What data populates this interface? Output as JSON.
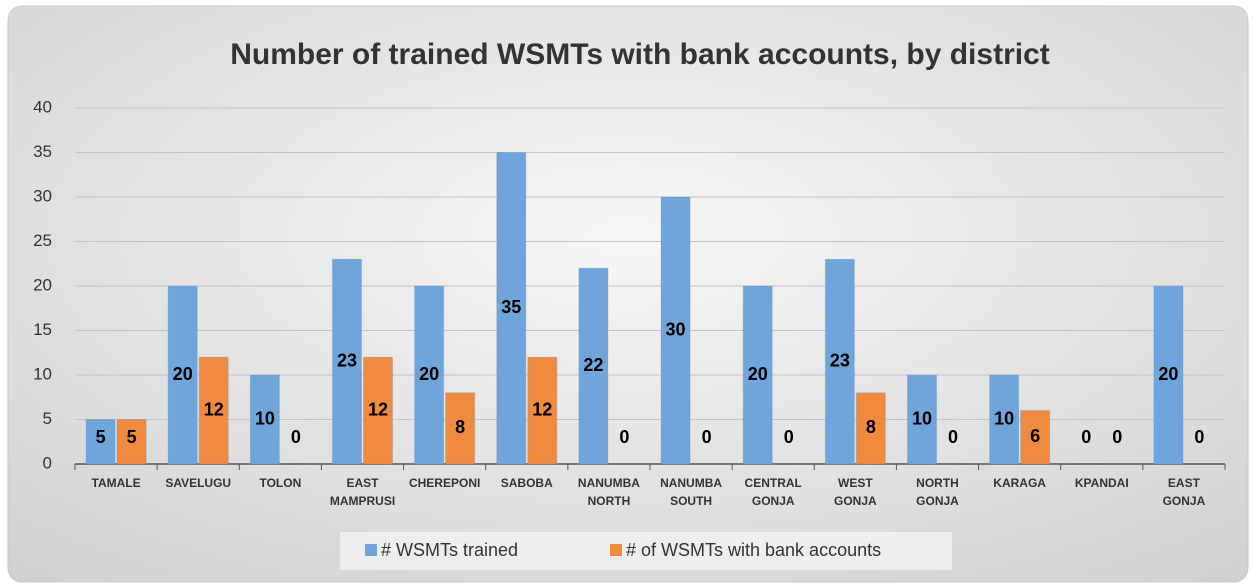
{
  "chart_data": {
    "type": "bar",
    "title": "Number of trained WSMTs with bank accounts, by district",
    "categories": [
      "TAMALE",
      "SAVELUGU",
      "TOLON",
      "EAST MAMPRUSI",
      "CHEREPONI",
      "SABOBA",
      "NANUMBA NORTH",
      "NANUMBA SOUTH",
      "CENTRAL GONJA",
      "WEST GONJA",
      "NORTH GONJA",
      "KARAGA",
      "KPANDAI",
      "EAST GONJA"
    ],
    "series": [
      {
        "name": "# WSMTs trained",
        "color": "#6fa5da",
        "values": [
          5,
          20,
          10,
          23,
          20,
          35,
          22,
          30,
          20,
          23,
          10,
          10,
          0,
          20
        ]
      },
      {
        "name": "# of WSMTs with bank accounts",
        "color": "#f08a3e",
        "values": [
          5,
          12,
          0,
          12,
          8,
          12,
          0,
          0,
          0,
          8,
          0,
          6,
          0,
          0
        ]
      }
    ],
    "ylim": [
      0,
      40
    ],
    "yticks": [
      0,
      5,
      10,
      15,
      20,
      25,
      30,
      35,
      40
    ],
    "grid": true,
    "legend": "bottom"
  }
}
